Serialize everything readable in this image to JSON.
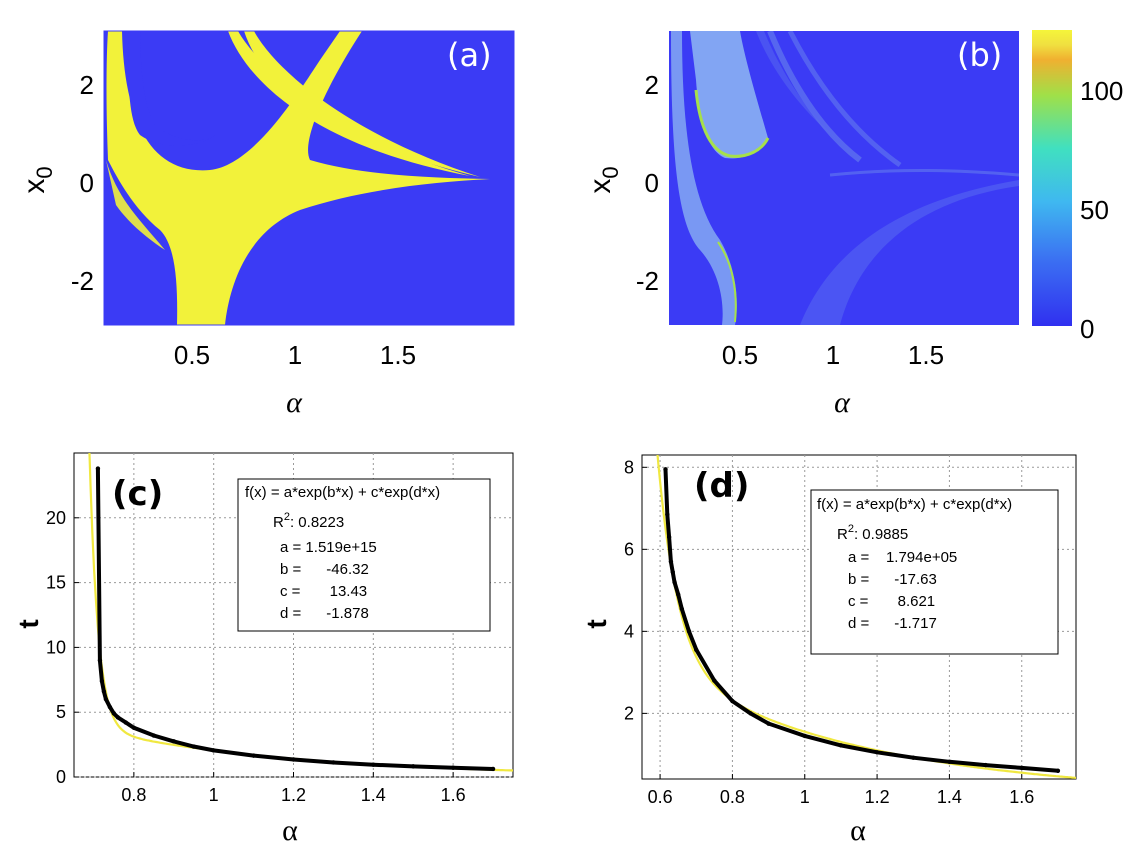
{
  "chart_data": [
    {
      "id": "a",
      "type": "heatmap",
      "panel_label": "(a)",
      "xlabel": "α",
      "ylabel": "x",
      "ylabel_sub": "0",
      "x_ticks": [
        "0.5",
        "1",
        "1.5"
      ],
      "y_ticks": [
        "2",
        "0",
        "-2"
      ],
      "xlim": [
        0.1,
        2.0
      ],
      "ylim": [
        -3,
        3
      ],
      "colors": {
        "background": "#3b3bf5",
        "region": "#f2f23a"
      }
    },
    {
      "id": "b",
      "type": "heatmap",
      "panel_label": "(b)",
      "xlabel": "α",
      "ylabel": "x",
      "ylabel_sub": "0",
      "x_ticks": [
        "0.5",
        "1",
        "1.5"
      ],
      "y_ticks": [
        "2",
        "0",
        "-2"
      ],
      "xlim": [
        0.1,
        2.0
      ],
      "ylim": [
        -3,
        3
      ],
      "colorbar": {
        "ticks": [
          "100",
          "50",
          "0"
        ],
        "range": [
          0,
          122
        ]
      },
      "colors": {
        "background": "#3b3bf5",
        "light": "#8fb8f2",
        "faint": "#5a6cf0",
        "hot": "#a6e04a"
      }
    },
    {
      "id": "c",
      "type": "scatter",
      "panel_label": "(c)",
      "xlabel": "α",
      "ylabel": "t",
      "xlim": [
        0.65,
        1.75
      ],
      "ylim": [
        0,
        25
      ],
      "x_ticks": [
        "0.8",
        "1",
        "1.2",
        "1.4",
        "1.6"
      ],
      "y_ticks": [
        "0",
        "5",
        "10",
        "15",
        "20"
      ],
      "fit": {
        "formula": "f(x) = a*exp(b*x) + c*exp(d*x)",
        "r2_label": "R",
        "r2_sup": "2",
        "r2_value": ": 0.8223",
        "lines": [
          "a = 1.519e+15",
          "b =      -46.32",
          "c =       13.43",
          "d =      -1.878"
        ],
        "a": 1519000000000000.0,
        "b": -46.32,
        "c": 13.43,
        "d": -1.878
      },
      "points": [
        [
          0.71,
          23.8
        ],
        [
          0.715,
          9.0
        ],
        [
          0.72,
          7.4
        ],
        [
          0.725,
          6.6
        ],
        [
          0.73,
          6.0
        ],
        [
          0.74,
          5.4
        ],
        [
          0.75,
          4.9
        ],
        [
          0.76,
          4.6
        ],
        [
          0.78,
          4.2
        ],
        [
          0.8,
          3.8
        ],
        [
          0.85,
          3.2
        ],
        [
          0.9,
          2.75
        ],
        [
          0.95,
          2.35
        ],
        [
          1.0,
          2.05
        ],
        [
          1.1,
          1.65
        ],
        [
          1.2,
          1.35
        ],
        [
          1.3,
          1.12
        ],
        [
          1.4,
          0.95
        ],
        [
          1.5,
          0.82
        ],
        [
          1.6,
          0.72
        ],
        [
          1.7,
          0.62
        ]
      ],
      "colors": {
        "fit": "#f0e840",
        "points": "#000000"
      }
    },
    {
      "id": "d",
      "type": "scatter",
      "panel_label": "(d)",
      "xlabel": "α",
      "ylabel": "t",
      "xlim": [
        0.55,
        1.75
      ],
      "ylim": [
        0.4,
        8.3
      ],
      "x_ticks": [
        "0.6",
        "0.8",
        "1",
        "1.2",
        "1.4",
        "1.6"
      ],
      "y_ticks": [
        "2",
        "4",
        "6",
        "8"
      ],
      "fit": {
        "formula": "f(x) = a*exp(b*x) + c*exp(d*x)",
        "r2_label": "R",
        "r2_sup": "2",
        "r2_value": ": 0.9885",
        "lines": [
          "a =    1.794e+05",
          "b =      -17.63",
          "c =       8.621",
          "d =      -1.717"
        ],
        "a": 179400,
        "b": -17.63,
        "c": 8.621,
        "d": -1.717
      },
      "points": [
        [
          0.615,
          7.95
        ],
        [
          0.62,
          6.85
        ],
        [
          0.625,
          6.3
        ],
        [
          0.63,
          5.7
        ],
        [
          0.635,
          5.45
        ],
        [
          0.64,
          5.2
        ],
        [
          0.65,
          4.9
        ],
        [
          0.66,
          4.55
        ],
        [
          0.68,
          4.0
        ],
        [
          0.7,
          3.55
        ],
        [
          0.75,
          2.8
        ],
        [
          0.8,
          2.3
        ],
        [
          0.85,
          2.0
        ],
        [
          0.9,
          1.75
        ],
        [
          1.0,
          1.45
        ],
        [
          1.1,
          1.22
        ],
        [
          1.2,
          1.05
        ],
        [
          1.3,
          0.92
        ],
        [
          1.4,
          0.82
        ],
        [
          1.5,
          0.74
        ],
        [
          1.6,
          0.67
        ],
        [
          1.7,
          0.6
        ]
      ],
      "colors": {
        "fit": "#f0e840",
        "points": "#000000"
      }
    }
  ]
}
